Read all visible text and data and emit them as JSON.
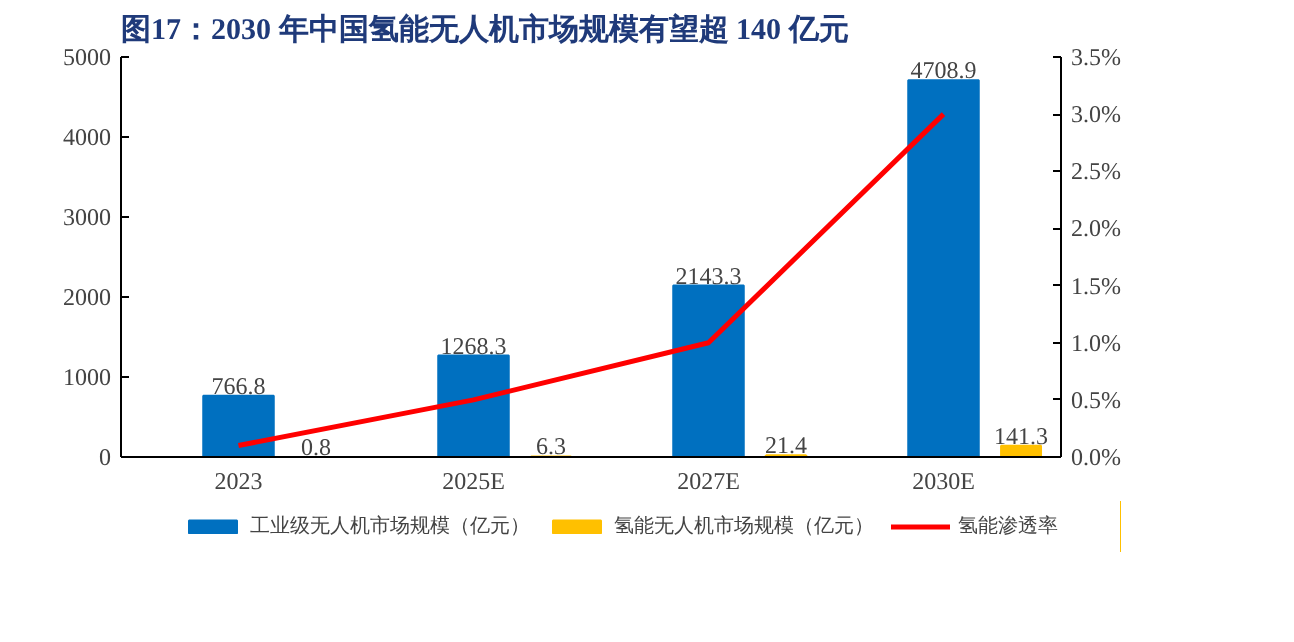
{
  "chart_data": {
    "type": "bar",
    "title": "图17：2030 年中国氢能无人机市场规模有望超 140 亿元",
    "categories": [
      "2023",
      "2025E",
      "2027E",
      "2030E"
    ],
    "series": [
      {
        "name": "工业级无人机市场规模（亿元）",
        "color": "#0070c0",
        "values": [
          766.8,
          1268.3,
          2143.3,
          4708.9
        ],
        "value_labels": [
          "766.8",
          "1268.3",
          "2143.3",
          "4708.9"
        ]
      },
      {
        "name": "氢能无人机市场规模（亿元）",
        "color": "#ffc000",
        "values": [
          0.8,
          6.3,
          21.4,
          141.3
        ],
        "value_labels": [
          "0.8",
          "6.3",
          "21.4",
          "141.3"
        ]
      },
      {
        "name": "氢能渗透率",
        "color": "#ff0000",
        "type": "line",
        "axis": "y2",
        "values": [
          0.1,
          0.5,
          1.0,
          3.0
        ]
      }
    ],
    "ylim": [
      0,
      5000
    ],
    "yticks": [
      0,
      1000,
      2000,
      3000,
      4000,
      5000
    ],
    "y2lim": [
      0,
      3.5
    ],
    "y2ticks": [
      {
        "value": 0,
        "label": "0.0%"
      },
      {
        "value": 0.5,
        "label": "0.5%"
      },
      {
        "value": 1,
        "label": "1.0%"
      },
      {
        "value": 1.5,
        "label": "1.5%"
      },
      {
        "value": 2,
        "label": "2.0%"
      },
      {
        "value": 2.5,
        "label": "2.5%"
      },
      {
        "value": 3,
        "label": "3.0%"
      },
      {
        "value": 3.5,
        "label": "3.5%"
      }
    ],
    "grid": false,
    "legend": "bottom",
    "marker": "none",
    "line_style": "solid"
  }
}
